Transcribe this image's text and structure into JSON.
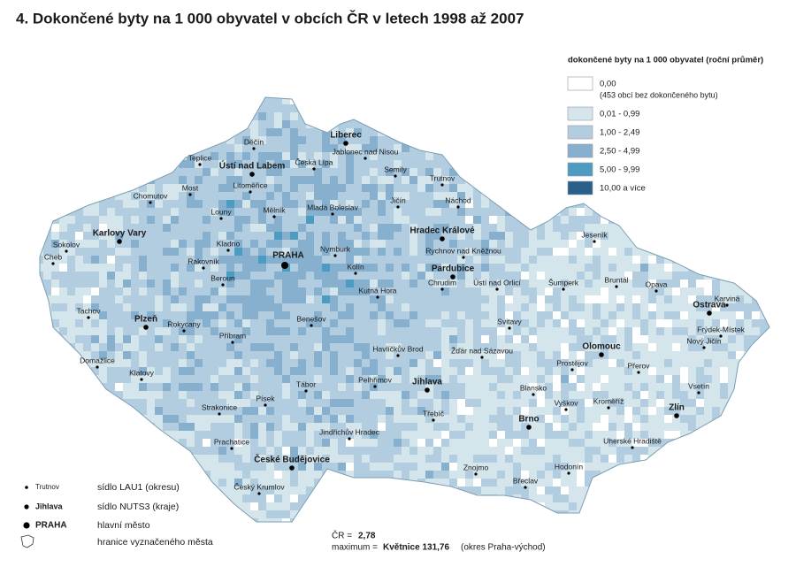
{
  "title": "4.  Dokončené byty na 1 000 obyvatel v obcích ČR v letech 1998 až 2007",
  "legend": {
    "title": "dokončené byty na 1 000 obyvatel (roční průměr)",
    "classes": [
      {
        "label": "0,00",
        "note": "(453 obcí bez dokončeného bytu)",
        "color": "#ffffff"
      },
      {
        "label": "0,01 - 0,99",
        "color": "#d4e6ec"
      },
      {
        "label": "1,00 - 2,49",
        "color": "#b3cde0"
      },
      {
        "label": "2,50 - 4,99",
        "color": "#86b0cd"
      },
      {
        "label": "5,00 - 9,99",
        "color": "#4c9cc2"
      },
      {
        "label": "10,00 a více",
        "color": "#2b5f8b"
      }
    ]
  },
  "symbols": {
    "lau1": {
      "sample": "Trutnov",
      "label": "sídlo LAU1 (okresu)"
    },
    "nuts3": {
      "sample": "Jihlava",
      "label": "sídlo NUTS3 (kraje)"
    },
    "capital": {
      "sample": "PRAHA",
      "label": "hlavní město"
    },
    "boundary": {
      "label": "hranice vyznačeného města"
    }
  },
  "stats": {
    "cr_label": "ČR =",
    "cr_value": "2,78",
    "max_label": "maximum =",
    "max_value": "Květnice 131,76",
    "max_note": "(okres Praha-východ)"
  },
  "capital": "PRAHA",
  "nuts3_seats": [
    "Liberec",
    "Ústí nad Labem",
    "Karlovy Vary",
    "Hradec Králové",
    "Pardubice",
    "Plzeň",
    "Olomouc",
    "Ostrava",
    "Jihlava",
    "Zlín",
    "Brno",
    "České Budějovice"
  ],
  "lau1_seats": [
    "Děčín",
    "Teplice",
    "Česká Lípa",
    "Jablonec nad Nisou",
    "Semily",
    "Trutnov",
    "Most",
    "Litoměřice",
    "Chomutov",
    "Mělník",
    "Mladá Boleslav",
    "Jičín",
    "Náchod",
    "Louny",
    "Kladno",
    "Nymburk",
    "Rychnov nad Kněžnou",
    "Jeseník",
    "Sokolov",
    "Cheb",
    "Rakovník",
    "Kolín",
    "Chrudim",
    "Ústí nad Orlicí",
    "Šumperk",
    "Bruntál",
    "Opava",
    "Karviná",
    "Beroun",
    "Kutná Hora",
    "Tachov",
    "Rokycany",
    "Benešov",
    "Svitavy",
    "Frýdek-Místek",
    "Nový Jičín",
    "Příbram",
    "Havlíčkův Brod",
    "Žďár nad Sázavou",
    "Domažlice",
    "Prostějov",
    "Přerov",
    "Klatovy",
    "Pelhřimov",
    "Tábor",
    "Blansko",
    "Vsetín",
    "Strakonice",
    "Písek",
    "Vyškov",
    "Kroměříž",
    "Třebíč",
    "Jindřichův Hradec",
    "Uherské Hradiště",
    "Prachatice",
    "Hodonín",
    "Znojmo",
    "Český Krumlov",
    "Břeclav"
  ]
}
